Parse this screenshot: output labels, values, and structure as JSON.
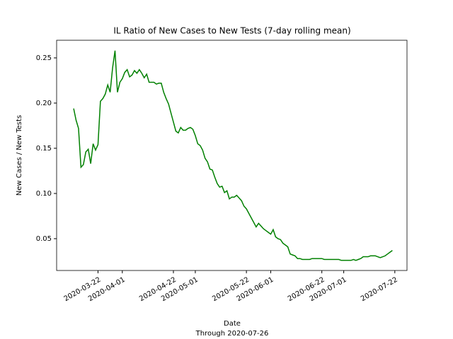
{
  "chart_data": {
    "type": "line",
    "title": "IL Ratio of New Cases to New Tests (7-day rolling mean)",
    "x_label": "Date",
    "x_sublabel": "Through 2020-07-26",
    "y_label": "New Cases / New Tests",
    "x": [
      "2020-03-12",
      "2020-03-13",
      "2020-03-14",
      "2020-03-15",
      "2020-03-16",
      "2020-03-17",
      "2020-03-18",
      "2020-03-19",
      "2020-03-20",
      "2020-03-21",
      "2020-03-22",
      "2020-03-23",
      "2020-03-24",
      "2020-03-25",
      "2020-03-26",
      "2020-03-27",
      "2020-03-28",
      "2020-03-29",
      "2020-03-30",
      "2020-03-31",
      "2020-04-01",
      "2020-04-02",
      "2020-04-03",
      "2020-04-04",
      "2020-04-05",
      "2020-04-06",
      "2020-04-07",
      "2020-04-08",
      "2020-04-09",
      "2020-04-10",
      "2020-04-11",
      "2020-04-12",
      "2020-04-13",
      "2020-04-14",
      "2020-04-15",
      "2020-04-16",
      "2020-04-17",
      "2020-04-18",
      "2020-04-19",
      "2020-04-20",
      "2020-04-21",
      "2020-04-22",
      "2020-04-23",
      "2020-04-24",
      "2020-04-25",
      "2020-04-26",
      "2020-04-27",
      "2020-04-28",
      "2020-04-29",
      "2020-04-30",
      "2020-05-01",
      "2020-05-02",
      "2020-05-03",
      "2020-05-04",
      "2020-05-05",
      "2020-05-06",
      "2020-05-07",
      "2020-05-08",
      "2020-05-09",
      "2020-05-10",
      "2020-05-11",
      "2020-05-12",
      "2020-05-13",
      "2020-05-14",
      "2020-05-15",
      "2020-05-16",
      "2020-05-17",
      "2020-05-18",
      "2020-05-19",
      "2020-05-20",
      "2020-05-21",
      "2020-05-22",
      "2020-05-23",
      "2020-05-24",
      "2020-05-25",
      "2020-05-26",
      "2020-05-27",
      "2020-05-28",
      "2020-05-29",
      "2020-05-30",
      "2020-05-31",
      "2020-06-01",
      "2020-06-02",
      "2020-06-03",
      "2020-06-04",
      "2020-06-05",
      "2020-06-06",
      "2020-06-07",
      "2020-06-08",
      "2020-06-09",
      "2020-06-10",
      "2020-06-11",
      "2020-06-12",
      "2020-06-13",
      "2020-06-14",
      "2020-06-15",
      "2020-06-16",
      "2020-06-17",
      "2020-06-18",
      "2020-06-19",
      "2020-06-20",
      "2020-06-21",
      "2020-06-22",
      "2020-06-23",
      "2020-06-24",
      "2020-06-25",
      "2020-06-26",
      "2020-06-27",
      "2020-06-28",
      "2020-06-29",
      "2020-06-30",
      "2020-07-01",
      "2020-07-02",
      "2020-07-03",
      "2020-07-04",
      "2020-07-05",
      "2020-07-06",
      "2020-07-07",
      "2020-07-08",
      "2020-07-09",
      "2020-07-10",
      "2020-07-11",
      "2020-07-12",
      "2020-07-13",
      "2020-07-14",
      "2020-07-15",
      "2020-07-16",
      "2020-07-17",
      "2020-07-18",
      "2020-07-19",
      "2020-07-20",
      "2020-07-21"
    ],
    "series": [
      {
        "name": "ratio",
        "color": "#008000",
        "values": [
          0.194,
          0.181,
          0.172,
          0.129,
          0.132,
          0.146,
          0.149,
          0.133,
          0.155,
          0.148,
          0.154,
          0.202,
          0.205,
          0.21,
          0.22,
          0.212,
          0.239,
          0.258,
          0.212,
          0.223,
          0.227,
          0.234,
          0.237,
          0.229,
          0.231,
          0.236,
          0.233,
          0.237,
          0.233,
          0.228,
          0.232,
          0.223,
          0.223,
          0.223,
          0.221,
          0.222,
          0.222,
          0.212,
          0.205,
          0.199,
          0.189,
          0.179,
          0.169,
          0.167,
          0.173,
          0.17,
          0.17,
          0.172,
          0.173,
          0.171,
          0.164,
          0.155,
          0.153,
          0.148,
          0.139,
          0.135,
          0.127,
          0.126,
          0.118,
          0.111,
          0.107,
          0.108,
          0.101,
          0.103,
          0.094,
          0.096,
          0.096,
          0.098,
          0.095,
          0.092,
          0.086,
          0.083,
          0.078,
          0.073,
          0.068,
          0.063,
          0.067,
          0.064,
          0.061,
          0.059,
          0.057,
          0.055,
          0.06,
          0.052,
          0.05,
          0.049,
          0.045,
          0.043,
          0.041,
          0.033,
          0.032,
          0.031,
          0.028,
          0.028,
          0.027,
          0.027,
          0.027,
          0.027,
          0.028,
          0.028,
          0.028,
          0.028,
          0.028,
          0.027,
          0.027,
          0.027,
          0.027,
          0.027,
          0.027,
          0.027,
          0.026,
          0.026,
          0.026,
          0.026,
          0.026,
          0.027,
          0.026,
          0.027,
          0.028,
          0.03,
          0.03,
          0.03,
          0.031,
          0.031,
          0.031,
          0.03,
          0.029,
          0.03,
          0.031,
          0.033,
          0.035,
          0.037
        ]
      }
    ],
    "xlim": [
      "2020-03-05",
      "2020-07-27"
    ],
    "xticks": [
      "2020-03-22",
      "2020-04-01",
      "2020-04-22",
      "2020-05-01",
      "2020-05-22",
      "2020-06-01",
      "2020-06-22",
      "2020-07-01",
      "2020-07-22"
    ],
    "ylim": [
      0.0148,
      0.2695
    ],
    "yticks": [
      0.05,
      {
        "value": 0.1,
        "label": "0.10"
      },
      0.15,
      {
        "value": 0.2,
        "label": "0.20"
      },
      0.25
    ],
    "grid": false
  }
}
